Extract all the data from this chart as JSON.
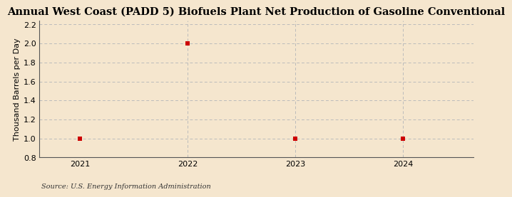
{
  "title": "Annual West Coast (PADD 5) Biofuels Plant Net Production of Gasoline Conventional",
  "ylabel": "Thousand Barrels per Day",
  "source": "Source: U.S. Energy Information Administration",
  "x_values": [
    2021,
    2022,
    2023,
    2024
  ],
  "y_values": [
    1.0,
    2.0,
    1.0,
    1.0
  ],
  "xlim": [
    2020.62,
    2024.65
  ],
  "ylim": [
    0.8,
    2.24
  ],
  "yticks": [
    0.8,
    1.0,
    1.2,
    1.4,
    1.6,
    1.8,
    2.0,
    2.2
  ],
  "xticks": [
    2021,
    2022,
    2023,
    2024
  ],
  "marker_color": "#cc0000",
  "marker_size": 4,
  "grid_color": "#bbbbbb",
  "bg_color": "#f5e6ce",
  "plot_bg_color": "#f5e6ce",
  "title_fontsize": 10.5,
  "label_fontsize": 8,
  "tick_fontsize": 8,
  "source_fontsize": 7
}
